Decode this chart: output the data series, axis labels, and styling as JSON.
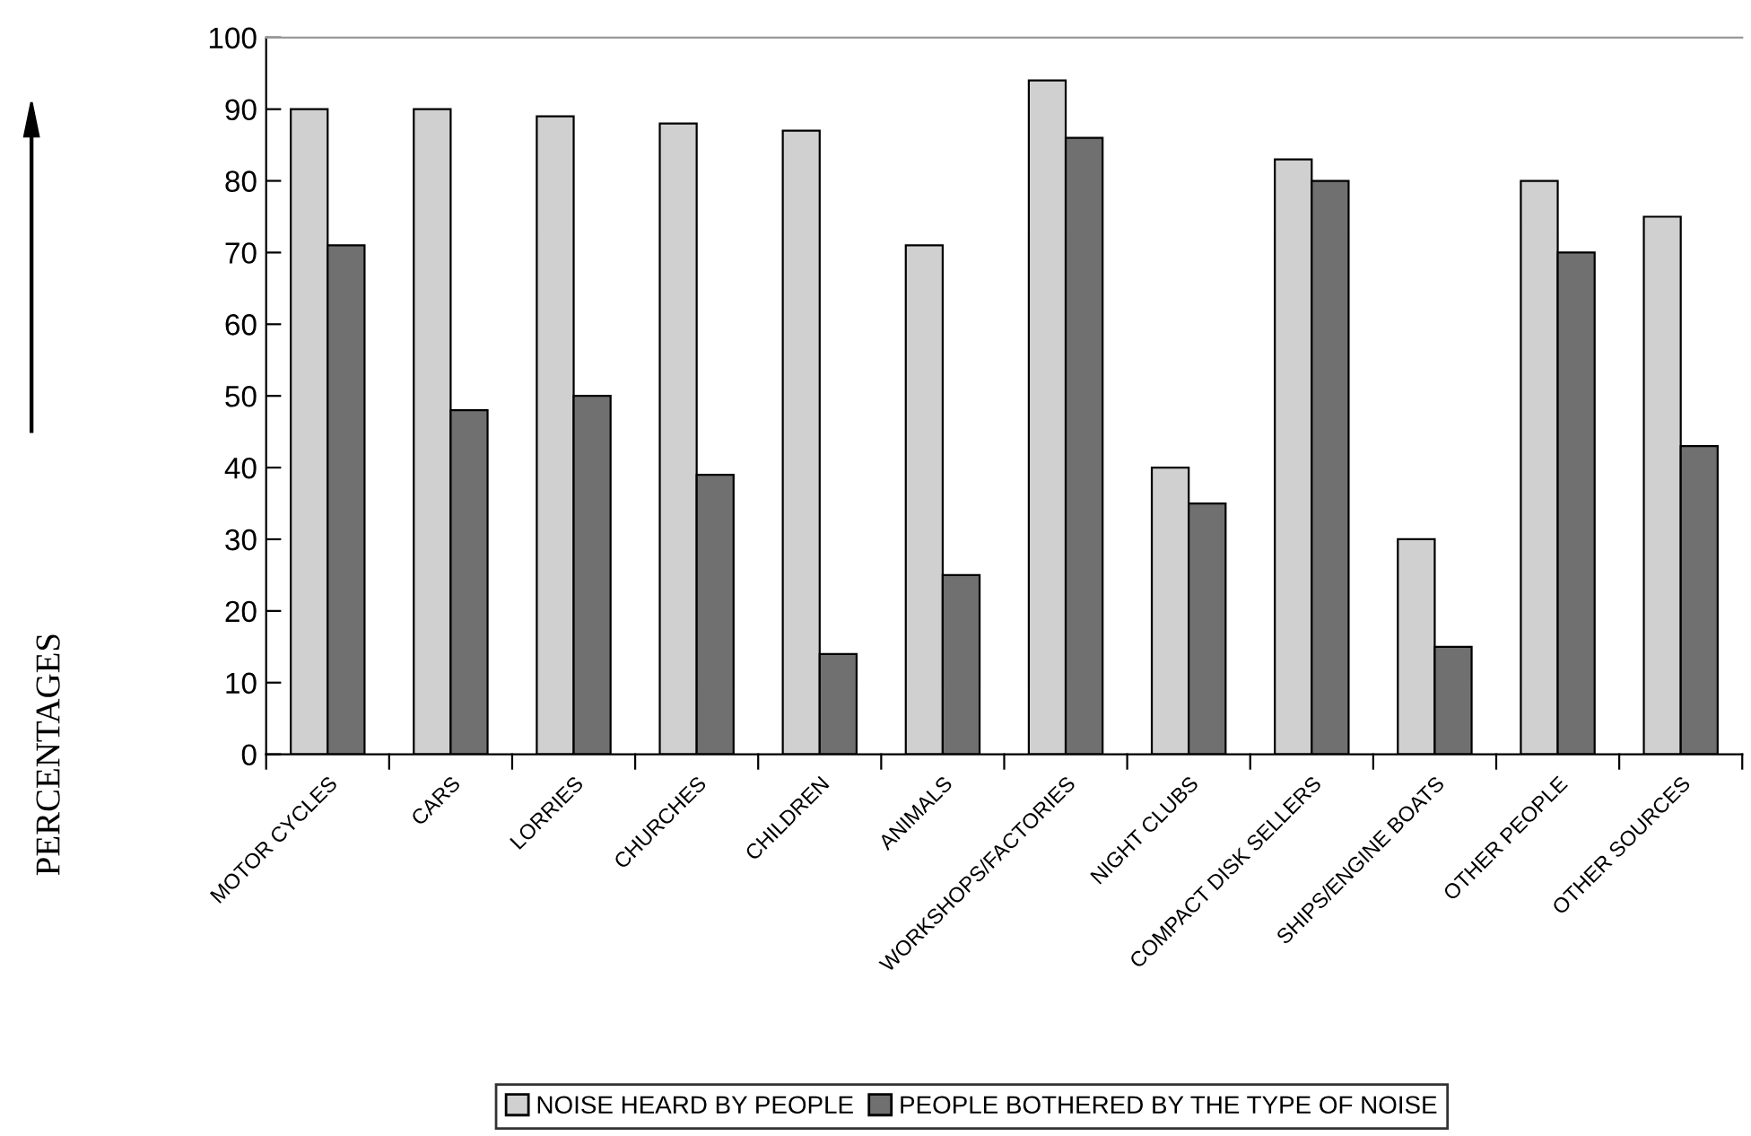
{
  "chart_data": {
    "type": "bar",
    "ylabel": "PERCENTAGES",
    "categories": [
      "MOTOR CYCLES",
      "CARS",
      "LORRIES",
      "CHURCHES",
      "CHILDREN",
      "ANIMALS",
      "WORKSHOPS/FACTORIES",
      "NIGHT CLUBS",
      "COMPACT DISK SELLERS",
      "SHIPS/ENGINE BOATS",
      "OTHER PEOPLE",
      "OTHER SOURCES"
    ],
    "series": [
      {
        "name": "NOISE HEARD BY PEOPLE",
        "color": "#d0d0d0",
        "values": [
          90,
          90,
          89,
          88,
          87,
          71,
          94,
          40,
          83,
          30,
          80,
          75
        ]
      },
      {
        "name": "PEOPLE BOTHERED BY THE TYPE OF NOISE",
        "color": "#707070",
        "values": [
          71,
          48,
          50,
          39,
          14,
          25,
          86,
          35,
          80,
          15,
          70,
          43
        ]
      }
    ],
    "ylim": [
      0,
      100
    ],
    "yticks": [
      0,
      10,
      20,
      30,
      40,
      50,
      60,
      70,
      80,
      90,
      100
    ],
    "grid": false,
    "legend": "bottom"
  }
}
